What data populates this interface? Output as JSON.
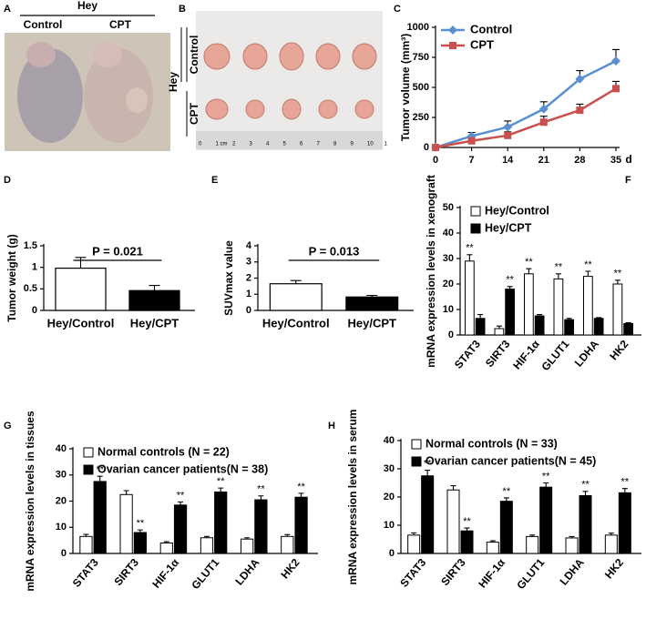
{
  "panels": {
    "labels": [
      "A",
      "B",
      "C",
      "D",
      "E",
      "F",
      "G",
      "H"
    ]
  },
  "photo_a": {
    "group": "Hey",
    "columns": [
      "Control",
      "CPT"
    ]
  },
  "photo_b": {
    "group": "Hey",
    "rows": [
      "Control",
      "CPT"
    ],
    "ruler": [
      "0",
      "1 cm",
      "2",
      "3",
      "4",
      "5",
      "6",
      "7",
      "8",
      "9",
      "10",
      "1"
    ]
  },
  "chart_data": [
    {
      "type": "line",
      "ylabel": "Tumor volume (mm³)",
      "xlabel": "d",
      "x": [
        0,
        7,
        14,
        21,
        28,
        35
      ],
      "xlim": [
        0,
        35
      ],
      "xticks": [
        0,
        7,
        14,
        21,
        28,
        35
      ],
      "ylim": [
        0,
        1000
      ],
      "yticks": [
        0,
        250,
        500,
        750,
        1000
      ],
      "legend": "upper left",
      "series": [
        {
          "name": "Control",
          "color": "#5b8fd0",
          "marker": "diamond",
          "values": [
            0,
            95,
            170,
            320,
            570,
            720
          ],
          "errors": [
            0,
            30,
            50,
            60,
            70,
            95
          ]
        },
        {
          "name": "CPT",
          "color": "#c9504f",
          "marker": "square",
          "values": [
            0,
            55,
            100,
            210,
            310,
            490
          ],
          "errors": [
            0,
            20,
            30,
            50,
            50,
            60
          ]
        }
      ]
    },
    {
      "type": "bar",
      "ylabel": "Tumor weight (g)",
      "annotation": "P = 0.021",
      "categories": [
        "Hey/Control",
        "Hey/CPT"
      ],
      "values": [
        0.98,
        0.46
      ],
      "errors": [
        0.25,
        0.12
      ],
      "colors": [
        "#ffffff",
        "#000000"
      ],
      "ylim": [
        0,
        1.5
      ],
      "yticks": [
        0,
        0.5,
        1,
        1.5
      ]
    },
    {
      "type": "bar",
      "ylabel": "SUVmax value",
      "annotation": "P = 0.013",
      "categories": [
        "Hey/Control",
        "Hey/CPT"
      ],
      "values": [
        1.65,
        0.83
      ],
      "errors": [
        0.2,
        0.1
      ],
      "colors": [
        "#ffffff",
        "#000000"
      ],
      "ylim": [
        0,
        4
      ],
      "yticks": [
        0,
        1,
        2,
        3,
        4
      ]
    },
    {
      "type": "grouped-bar",
      "ylabel": "mRNA expression levels in xenograft",
      "legend": "upper left",
      "categories": [
        "STAT3",
        "SIRT3",
        "HIF-1α",
        "GLUT1",
        "LDHA",
        "HK2"
      ],
      "ylim": [
        0,
        50
      ],
      "yticks": [
        0,
        10,
        20,
        30,
        40,
        50
      ],
      "series": [
        {
          "name": "Hey/Control",
          "color": "#ffffff",
          "values": [
            29,
            2.5,
            24,
            22,
            23,
            20
          ],
          "errors": [
            2.5,
            1,
            2,
            2,
            2,
            1.5
          ],
          "significance": [
            "**",
            null,
            "**",
            "**",
            "**",
            "**"
          ]
        },
        {
          "name": "Hey/CPT",
          "color": "#000000",
          "values": [
            6.5,
            18,
            7.5,
            6,
            6.5,
            4.5
          ],
          "errors": [
            1.5,
            1,
            0.5,
            0.5,
            0.3,
            0.3
          ],
          "significance": [
            null,
            "**",
            null,
            null,
            null,
            null
          ]
        }
      ]
    },
    {
      "type": "grouped-bar",
      "ylabel": "mRNA expression levels in tissues",
      "legend": "upper left",
      "categories": [
        "STAT3",
        "SIRT3",
        "HIF-1α",
        "GLUT1",
        "LDHA",
        "HK2"
      ],
      "ylim": [
        0,
        40
      ],
      "yticks": [
        0,
        10,
        20,
        30,
        40
      ],
      "series": [
        {
          "name": "Normal controls (N = 22)",
          "color": "#ffffff",
          "values": [
            6.5,
            22.5,
            4,
            6,
            5.5,
            6.5
          ],
          "errors": [
            0.8,
            1.5,
            0.5,
            0.5,
            0.5,
            0.7
          ],
          "significance": [
            null,
            null,
            null,
            null,
            null,
            null
          ]
        },
        {
          "name": "Ovarian cancer patients(N = 38)",
          "color": "#000000",
          "values": [
            27.5,
            8,
            18.5,
            23.5,
            20.5,
            21.5
          ],
          "errors": [
            2,
            1,
            1.2,
            1.5,
            1.5,
            1.5
          ],
          "significance": [
            "**",
            "**",
            "**",
            "**",
            "**",
            "**"
          ]
        }
      ]
    },
    {
      "type": "grouped-bar",
      "ylabel": "mRNA expression levels in serum",
      "legend": "upper left",
      "categories": [
        "STAT3",
        "SIRT3",
        "HIF-1α",
        "GLUT1",
        "LDHA",
        "HK2"
      ],
      "ylim": [
        0,
        40
      ],
      "yticks": [
        0,
        10,
        20,
        30,
        40
      ],
      "series": [
        {
          "name": "Normal controls (N = 33)",
          "color": "#ffffff",
          "values": [
            6.5,
            22.5,
            4,
            6,
            5.5,
            6.5
          ],
          "errors": [
            0.8,
            1.5,
            0.5,
            0.5,
            0.5,
            0.7
          ],
          "significance": [
            null,
            null,
            null,
            null,
            null,
            null
          ]
        },
        {
          "name": "Ovarian cancer patients(N = 45)",
          "color": "#000000",
          "values": [
            27.5,
            8,
            18.5,
            23.5,
            20.5,
            21.5
          ],
          "errors": [
            2,
            1,
            1.2,
            1.5,
            1.5,
            1.5
          ],
          "significance": [
            "**",
            "**",
            "**",
            "**",
            "**",
            "**"
          ]
        }
      ]
    }
  ]
}
